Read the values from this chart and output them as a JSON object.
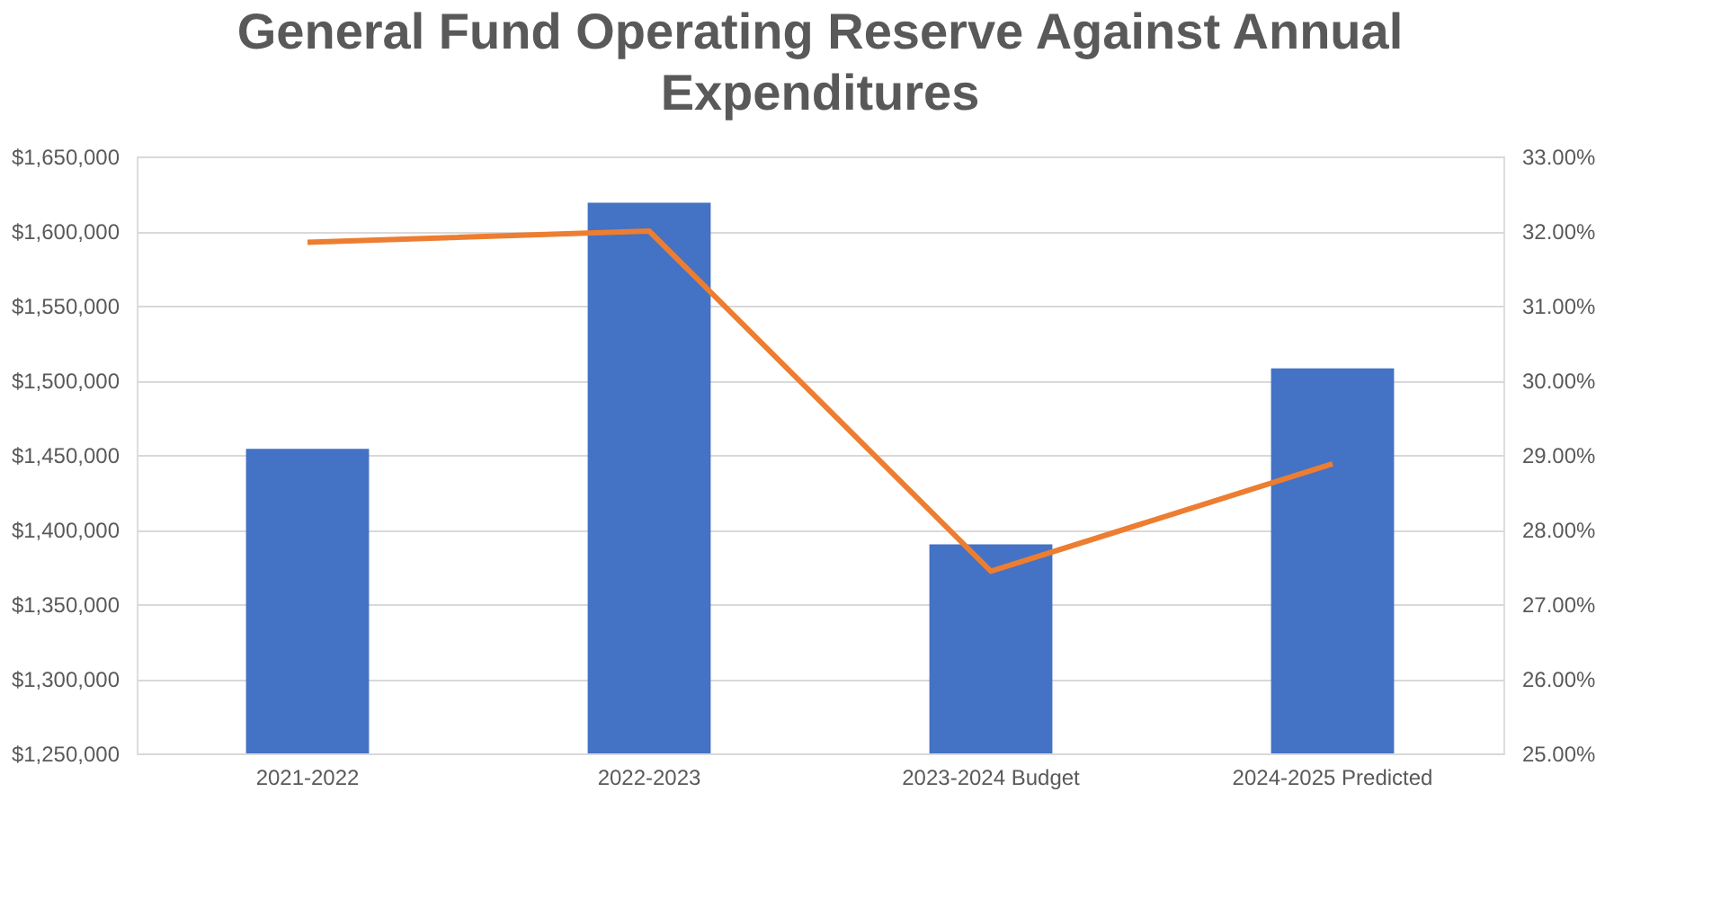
{
  "chart_data": {
    "type": "bar",
    "title": "General Fund Operating Reserve Against Annual Expenditures",
    "categories": [
      "2021-2022",
      "2022-2023",
      "2023-2024 Budget",
      "2024-2025 Predicted"
    ],
    "series": [
      {
        "color": "#4472c4",
        "values": [
          1454000,
          1619000,
          1390000,
          1508000
        ]
      },
      {
        "type": "line",
        "axis": "y2",
        "color": "#ed7d31",
        "values": [
          31.85,
          32.0,
          27.44,
          28.88
        ]
      }
    ],
    "ylim": [
      1250000,
      1650000
    ],
    "yticks": [
      {
        "value": 1250000,
        "label": "$1,250,000"
      },
      {
        "value": 1300000,
        "label": "$1,300,000"
      },
      {
        "value": 1350000,
        "label": "$1,350,000"
      },
      {
        "value": 1400000,
        "label": "$1,400,000"
      },
      {
        "value": 1450000,
        "label": "$1,450,000"
      },
      {
        "value": 1500000,
        "label": "$1,500,000"
      },
      {
        "value": 1550000,
        "label": "$1,550,000"
      },
      {
        "value": 1600000,
        "label": "$1,600,000"
      },
      {
        "value": 1650000,
        "label": "$1,650,000"
      }
    ],
    "y2lim": [
      25,
      33
    ],
    "y2ticks": [
      {
        "value": 25,
        "label": "25.00%"
      },
      {
        "value": 26,
        "label": "26.00%"
      },
      {
        "value": 27,
        "label": "27.00%"
      },
      {
        "value": 28,
        "label": "28.00%"
      },
      {
        "value": 29,
        "label": "29.00%"
      },
      {
        "value": 30,
        "label": "30.00%"
      },
      {
        "value": 31,
        "label": "31.00%"
      },
      {
        "value": 32,
        "label": "32.00%"
      },
      {
        "value": 33,
        "label": "33.00%"
      }
    ],
    "grid": "y",
    "marker": "none",
    "line_style": "solid"
  }
}
